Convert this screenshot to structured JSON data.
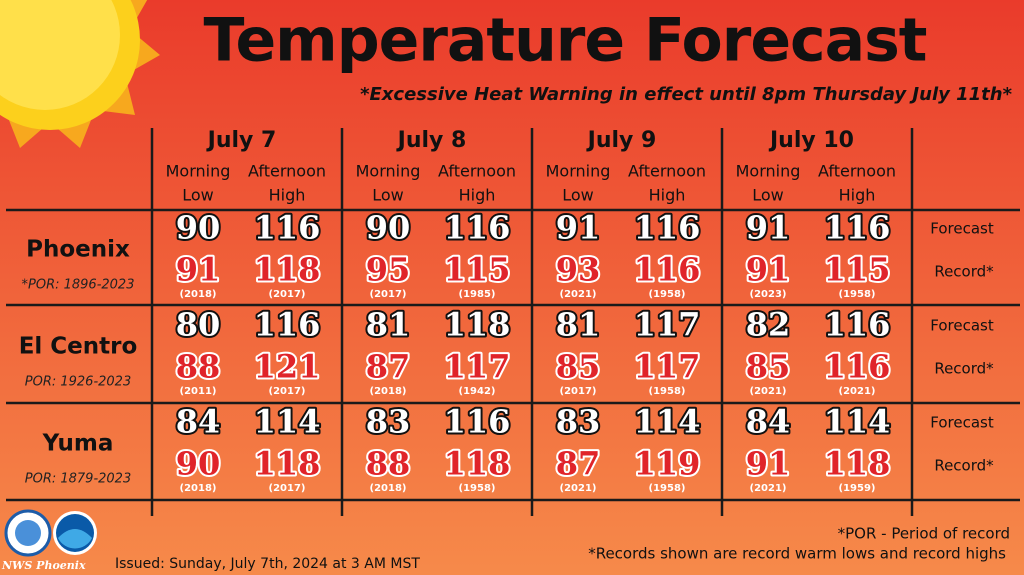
{
  "header": {
    "title": "Temperature Forecast",
    "subtitle": "*Excessive Heat Warning in effect until 8pm Thursday July 11th*"
  },
  "columns": {
    "morning": [
      "Morning",
      "Low"
    ],
    "afternoon": [
      "Afternoon",
      "High"
    ]
  },
  "days": [
    "July 7",
    "July 8",
    "July 9",
    "July 10"
  ],
  "row_labels": {
    "forecast": "Forecast",
    "record": "Record*"
  },
  "cities": [
    {
      "name": "Phoenix",
      "por": "*POR: 1896-2023",
      "forecast": [
        [
          90,
          116
        ],
        [
          90,
          116
        ],
        [
          91,
          116
        ],
        [
          91,
          116
        ]
      ],
      "record": [
        [
          91,
          118
        ],
        [
          95,
          115
        ],
        [
          93,
          116
        ],
        [
          91,
          115
        ]
      ],
      "record_years": [
        [
          "(2018)",
          "(2017)"
        ],
        [
          "(2017)",
          "(1985)"
        ],
        [
          "(2021)",
          "(1958)"
        ],
        [
          "(2023)",
          "(1958)"
        ]
      ]
    },
    {
      "name": "El Centro",
      "por": "POR: 1926-2023",
      "forecast": [
        [
          80,
          116
        ],
        [
          81,
          118
        ],
        [
          81,
          117
        ],
        [
          82,
          116
        ]
      ],
      "record": [
        [
          88,
          121
        ],
        [
          87,
          117
        ],
        [
          85,
          117
        ],
        [
          85,
          116
        ]
      ],
      "record_years": [
        [
          "(2011)",
          "(2017)"
        ],
        [
          "(2018)",
          "(1942)"
        ],
        [
          "(2017)",
          "(1958)"
        ],
        [
          "(2021)",
          "(2021)"
        ]
      ]
    },
    {
      "name": "Yuma",
      "por": "POR: 1879-2023",
      "forecast": [
        [
          84,
          114
        ],
        [
          83,
          116
        ],
        [
          83,
          114
        ],
        [
          84,
          114
        ]
      ],
      "record": [
        [
          90,
          118
        ],
        [
          88,
          118
        ],
        [
          87,
          119
        ],
        [
          91,
          118
        ]
      ],
      "record_years": [
        [
          "(2018)",
          "(2017)"
        ],
        [
          "(2018)",
          "(1958)"
        ],
        [
          "(2021)",
          "(1958)"
        ],
        [
          "(2021)",
          "(1959)"
        ]
      ]
    }
  ],
  "footer": {
    "por_note": "*POR - Period of record",
    "records_note": "*Records shown are record warm lows and record highs",
    "issued": "Issued: Sunday, July 7th, 2024 at 3 AM MST",
    "office": "NWS Phoenix"
  }
}
